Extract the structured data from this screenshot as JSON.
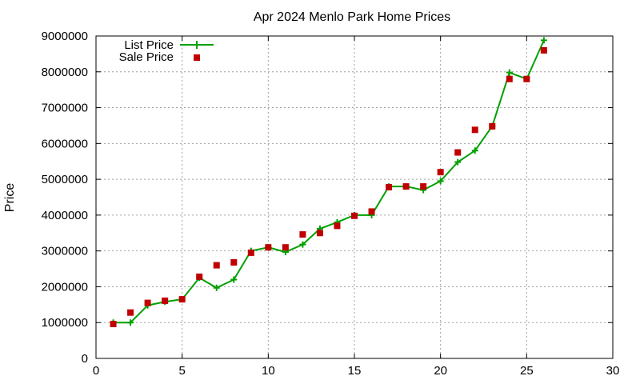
{
  "chart_data": {
    "type": "line",
    "title": "Apr 2024 Menlo Park Home Prices",
    "xlabel": "",
    "ylabel": "Price",
    "xlim": [
      0,
      30
    ],
    "ylim": [
      0,
      9000000
    ],
    "x_ticks": [
      "0",
      "5",
      "10",
      "15",
      "20",
      "25",
      "30"
    ],
    "y_ticks": [
      "0",
      "1000000",
      "2000000",
      "3000000",
      "4000000",
      "5000000",
      "6000000",
      "7000000",
      "8000000",
      "9000000"
    ],
    "grid": true,
    "legend_position": "top-left",
    "series": [
      {
        "name": "List Price",
        "style": "line-with-plus-markers",
        "color": "#00a000",
        "x": [
          1,
          2,
          3,
          4,
          5,
          6,
          7,
          8,
          9,
          10,
          11,
          12,
          13,
          14,
          15,
          16,
          17,
          18,
          19,
          20,
          21,
          22,
          23,
          24,
          25,
          26
        ],
        "y": [
          1000000,
          1000000,
          1480000,
          1580000,
          1650000,
          2250000,
          1970000,
          2200000,
          3000000,
          3100000,
          2970000,
          3180000,
          3620000,
          3800000,
          4000000,
          4000000,
          4800000,
          4800000,
          4700000,
          4950000,
          5480000,
          5800000,
          6480000,
          7980000,
          7800000,
          8880000
        ]
      },
      {
        "name": "Sale Price",
        "style": "square-markers",
        "color": "#c00000",
        "x": [
          1,
          2,
          3,
          4,
          5,
          6,
          7,
          8,
          9,
          10,
          11,
          12,
          13,
          14,
          15,
          16,
          17,
          18,
          19,
          20,
          21,
          22,
          23,
          24,
          25,
          26
        ],
        "y": [
          960000,
          1280000,
          1550000,
          1610000,
          1650000,
          2280000,
          2600000,
          2680000,
          2950000,
          3100000,
          3100000,
          3460000,
          3500000,
          3700000,
          3980000,
          4100000,
          4780000,
          4800000,
          4800000,
          5200000,
          5750000,
          6380000,
          6480000,
          7800000,
          7800000,
          8600000
        ]
      }
    ]
  }
}
